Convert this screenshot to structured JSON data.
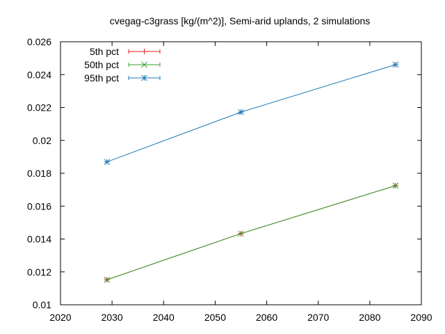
{
  "chart_data": {
    "type": "line",
    "title": "cvegag-c3grass [kg/(m^2)], Semi-arid uplands, 2 simulations",
    "xlabel": "",
    "ylabel": "",
    "xlim": [
      2020,
      2090
    ],
    "ylim": [
      0.01,
      0.026
    ],
    "x_ticks": [
      2020,
      2030,
      2040,
      2050,
      2060,
      2070,
      2080,
      2090
    ],
    "x_tick_labels": [
      "2020",
      "2030",
      "2040",
      "2050",
      "2060",
      "2070",
      "2080",
      "2090"
    ],
    "y_ticks": [
      0.01,
      0.012,
      0.014,
      0.016,
      0.018,
      0.02,
      0.022,
      0.024,
      0.026
    ],
    "y_tick_labels": [
      "0.01",
      "0.012",
      "0.014",
      "0.016",
      "0.018",
      "0.02",
      "0.022",
      "0.024",
      "0.026"
    ],
    "grid": false,
    "legend_position": "top-left",
    "x": [
      2029,
      2055,
      2085
    ],
    "series": [
      {
        "name": "5th pct",
        "values": [
          0.01152,
          0.01433,
          0.01725
        ],
        "color": "#e41a1c",
        "marker": "plus"
      },
      {
        "name": "50th pct",
        "values": [
          0.01152,
          0.01433,
          0.01725
        ],
        "color": "#33a02c",
        "marker": "cross"
      },
      {
        "name": "95th pct",
        "values": [
          0.01869,
          0.02172,
          0.02461
        ],
        "color": "#1f78b4",
        "marker": "star"
      }
    ]
  }
}
